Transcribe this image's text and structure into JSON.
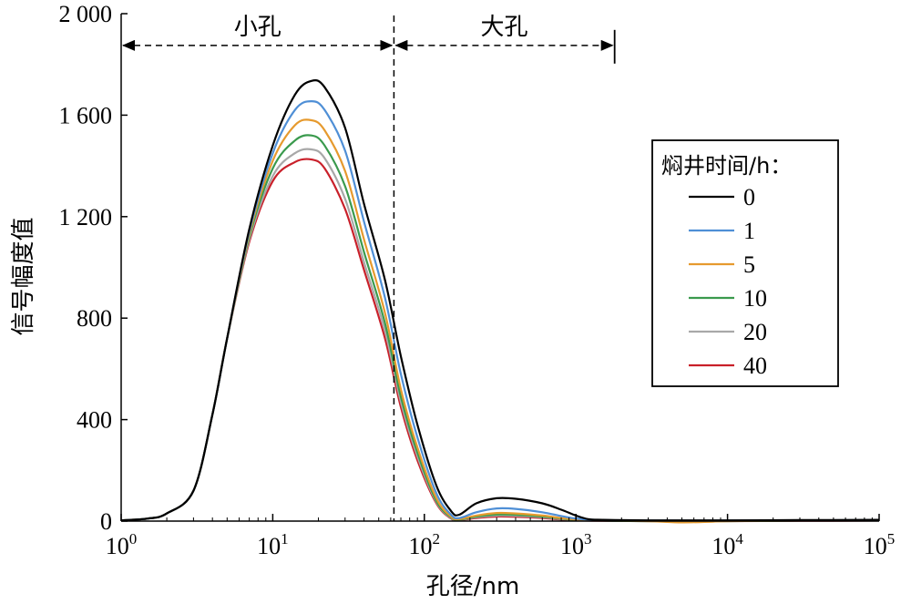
{
  "chart_data": {
    "type": "line",
    "xlabel": "孔径/nm",
    "ylabel": "信号幅度值",
    "xscale": "log",
    "xlim": [
      1,
      100000
    ],
    "ylim": [
      0,
      2000
    ],
    "x_ticks": [
      {
        "value": 1,
        "base": "10",
        "exp": "0"
      },
      {
        "value": 10,
        "base": "10",
        "exp": "1"
      },
      {
        "value": 100,
        "base": "10",
        "exp": "2"
      },
      {
        "value": 1000,
        "base": "10",
        "exp": "3"
      },
      {
        "value": 10000,
        "base": "10",
        "exp": "4"
      },
      {
        "value": 100000,
        "base": "10",
        "exp": "5"
      }
    ],
    "y_ticks": [
      {
        "value": 0,
        "label": "0"
      },
      {
        "value": 400,
        "label": "400"
      },
      {
        "value": 800,
        "label": "800"
      },
      {
        "value": 1200,
        "label": "1 200"
      },
      {
        "value": 1600,
        "label": "1 600"
      },
      {
        "value": 2000,
        "label": "2 000"
      }
    ],
    "grid": false,
    "legend": {
      "title": "焖井时间/h：",
      "placement": "right"
    },
    "annotations": {
      "small_pore_label": "小孔",
      "large_pore_label": "大孔",
      "divider_x": 63,
      "small_range": [
        1,
        63
      ],
      "large_range": [
        63,
        1800
      ],
      "arrow_y": 1875
    },
    "series": [
      {
        "name": "0",
        "color": "#000000",
        "points": [
          [
            1,
            3
          ],
          [
            1.5,
            10
          ],
          [
            2,
            30
          ],
          [
            3,
            120
          ],
          [
            4,
            420
          ],
          [
            5,
            720
          ],
          [
            7,
            1150
          ],
          [
            10,
            1480
          ],
          [
            14,
            1680
          ],
          [
            18,
            1735
          ],
          [
            22,
            1710
          ],
          [
            30,
            1550
          ],
          [
            40,
            1250
          ],
          [
            55,
            950
          ],
          [
            70,
            650
          ],
          [
            90,
            380
          ],
          [
            120,
            140
          ],
          [
            150,
            40
          ],
          [
            170,
            25
          ],
          [
            220,
            70
          ],
          [
            300,
            90
          ],
          [
            400,
            88
          ],
          [
            600,
            70
          ],
          [
            800,
            45
          ],
          [
            1000,
            22
          ],
          [
            1200,
            8
          ],
          [
            1500,
            5
          ],
          [
            3000,
            3
          ],
          [
            10000,
            3
          ],
          [
            30000,
            4
          ],
          [
            100000,
            5
          ]
        ]
      },
      {
        "name": "1",
        "color": "#4f8fd6",
        "points": [
          [
            1,
            3
          ],
          [
            1.5,
            10
          ],
          [
            2,
            30
          ],
          [
            3,
            120
          ],
          [
            4,
            420
          ],
          [
            5,
            720
          ],
          [
            7,
            1140
          ],
          [
            10,
            1450
          ],
          [
            14,
            1620
          ],
          [
            18,
            1655
          ],
          [
            22,
            1620
          ],
          [
            30,
            1460
          ],
          [
            40,
            1180
          ],
          [
            55,
            880
          ],
          [
            70,
            580
          ],
          [
            90,
            330
          ],
          [
            120,
            110
          ],
          [
            150,
            25
          ],
          [
            170,
            12
          ],
          [
            220,
            35
          ],
          [
            300,
            50
          ],
          [
            400,
            48
          ],
          [
            600,
            35
          ],
          [
            800,
            20
          ],
          [
            1000,
            10
          ],
          [
            1500,
            4
          ],
          [
            3000,
            2
          ],
          [
            10000,
            2
          ],
          [
            30000,
            3
          ],
          [
            100000,
            4
          ]
        ]
      },
      {
        "name": "5",
        "color": "#e69a2e",
        "points": [
          [
            1,
            3
          ],
          [
            1.5,
            10
          ],
          [
            2,
            30
          ],
          [
            3,
            120
          ],
          [
            4,
            420
          ],
          [
            5,
            720
          ],
          [
            7,
            1130
          ],
          [
            10,
            1420
          ],
          [
            14,
            1560
          ],
          [
            18,
            1580
          ],
          [
            22,
            1540
          ],
          [
            30,
            1380
          ],
          [
            40,
            1110
          ],
          [
            55,
            820
          ],
          [
            70,
            520
          ],
          [
            90,
            290
          ],
          [
            120,
            90
          ],
          [
            150,
            18
          ],
          [
            170,
            8
          ],
          [
            220,
            22
          ],
          [
            300,
            32
          ],
          [
            400,
            30
          ],
          [
            600,
            22
          ],
          [
            800,
            12
          ],
          [
            1000,
            6
          ],
          [
            1500,
            3
          ],
          [
            3000,
            0
          ],
          [
            5000,
            -5
          ],
          [
            8000,
            -2
          ],
          [
            10000,
            0
          ],
          [
            30000,
            2
          ],
          [
            100000,
            3
          ]
        ]
      },
      {
        "name": "10",
        "color": "#3a9a4d",
        "points": [
          [
            1,
            3
          ],
          [
            1.5,
            10
          ],
          [
            2,
            30
          ],
          [
            3,
            120
          ],
          [
            4,
            420
          ],
          [
            5,
            720
          ],
          [
            7,
            1120
          ],
          [
            10,
            1390
          ],
          [
            14,
            1500
          ],
          [
            18,
            1520
          ],
          [
            22,
            1480
          ],
          [
            30,
            1320
          ],
          [
            40,
            1060
          ],
          [
            55,
            780
          ],
          [
            70,
            490
          ],
          [
            90,
            270
          ],
          [
            120,
            80
          ],
          [
            150,
            15
          ],
          [
            170,
            6
          ],
          [
            220,
            18
          ],
          [
            300,
            26
          ],
          [
            400,
            25
          ],
          [
            600,
            18
          ],
          [
            800,
            10
          ],
          [
            1000,
            5
          ],
          [
            1500,
            2
          ],
          [
            3000,
            0
          ],
          [
            10000,
            0
          ],
          [
            30000,
            2
          ],
          [
            100000,
            3
          ]
        ]
      },
      {
        "name": "20",
        "color": "#a8a8a8",
        "points": [
          [
            1,
            3
          ],
          [
            1.5,
            10
          ],
          [
            2,
            30
          ],
          [
            3,
            120
          ],
          [
            4,
            420
          ],
          [
            5,
            720
          ],
          [
            7,
            1110
          ],
          [
            10,
            1360
          ],
          [
            14,
            1450
          ],
          [
            18,
            1465
          ],
          [
            22,
            1430
          ],
          [
            30,
            1270
          ],
          [
            40,
            1020
          ],
          [
            55,
            750
          ],
          [
            70,
            470
          ],
          [
            90,
            255
          ],
          [
            120,
            75
          ],
          [
            150,
            12
          ],
          [
            170,
            5
          ],
          [
            220,
            15
          ],
          [
            300,
            22
          ],
          [
            400,
            21
          ],
          [
            600,
            15
          ],
          [
            800,
            8
          ],
          [
            1000,
            4
          ],
          [
            1500,
            2
          ],
          [
            3000,
            0
          ],
          [
            10000,
            0
          ],
          [
            30000,
            2
          ],
          [
            100000,
            3
          ]
        ]
      },
      {
        "name": "40",
        "color": "#c9202a",
        "points": [
          [
            1,
            3
          ],
          [
            1.5,
            10
          ],
          [
            2,
            30
          ],
          [
            3,
            120
          ],
          [
            4,
            420
          ],
          [
            5,
            720
          ],
          [
            7,
            1100
          ],
          [
            10,
            1340
          ],
          [
            14,
            1415
          ],
          [
            18,
            1425
          ],
          [
            22,
            1390
          ],
          [
            30,
            1230
          ],
          [
            40,
            990
          ],
          [
            55,
            720
          ],
          [
            70,
            450
          ],
          [
            90,
            240
          ],
          [
            120,
            70
          ],
          [
            150,
            10
          ],
          [
            170,
            4
          ],
          [
            220,
            12
          ],
          [
            300,
            18
          ],
          [
            400,
            17
          ],
          [
            600,
            12
          ],
          [
            800,
            6
          ],
          [
            1000,
            3
          ],
          [
            1500,
            1
          ],
          [
            3000,
            0
          ],
          [
            10000,
            0
          ],
          [
            30000,
            1
          ],
          [
            100000,
            2
          ]
        ]
      }
    ]
  }
}
